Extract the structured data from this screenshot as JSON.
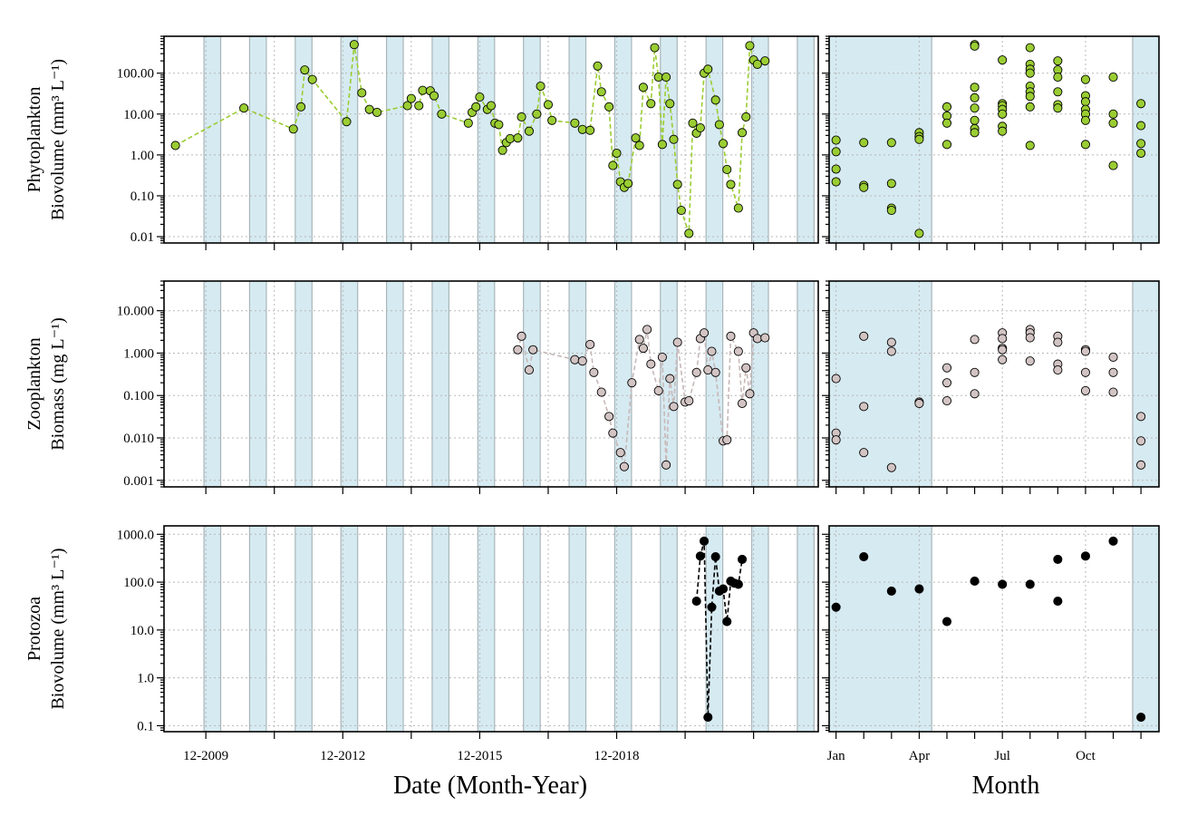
{
  "figure": {
    "xlabel_date": "Date (Month-Year)",
    "xlabel_month": "Month",
    "date_tick_labels": [
      "12-2009",
      "12-2012",
      "12-2015",
      "12-2018"
    ],
    "month_tick_labels": [
      "Jan",
      "Apr",
      "Jul",
      "Oct"
    ],
    "colors": {
      "phyto_point": "#9acd32",
      "phyto_line": "#9acd32",
      "zoo_point": "#d3c4c4",
      "zoo_line": "#c8b8b8",
      "proto_point": "#000000",
      "proto_line": "#000000",
      "winter_shade": "#d6eaf1"
    }
  },
  "chart_data": [
    {
      "type": "scatter",
      "panel": "time-series",
      "ylabel_line1": "Phytoplankton",
      "ylabel_line2": "Biovolume (mm³ L⁻¹)",
      "yscale": "log",
      "ylim": [
        0.007,
        800
      ],
      "ytick_labels": [
        "0.01",
        "0.10",
        "1.00",
        "10.00",
        "100.00"
      ],
      "ytick_values": [
        0.01,
        0.1,
        1,
        10,
        100
      ],
      "series": [
        {
          "values": [
            [
              "2009-04",
              1.7
            ],
            [
              "2010-10",
              14
            ],
            [
              "2011-11",
              4.3
            ],
            [
              "2012-01",
              15
            ],
            [
              "2012-02",
              120
            ],
            [
              "2012-04",
              70
            ],
            [
              "2013-01",
              6.5
            ],
            [
              "2013-03",
              500
            ],
            [
              "2013-05",
              33
            ],
            [
              "2013-07",
              13
            ],
            [
              "2013-09",
              11
            ],
            [
              "2014-05",
              16
            ],
            [
              "2014-06",
              24
            ],
            [
              "2014-08",
              16
            ],
            [
              "2014-09",
              38
            ],
            [
              "2014-11",
              37
            ],
            [
              "2014-12",
              28
            ],
            [
              "2015-02",
              10
            ],
            [
              "2015-09",
              6
            ],
            [
              "2015-10",
              11
            ],
            [
              "2015-11",
              15
            ],
            [
              "2015-12",
              26
            ],
            [
              "2016-02",
              13
            ],
            [
              "2016-03",
              16
            ],
            [
              "2016-04",
              6
            ],
            [
              "2016-05",
              5.5
            ],
            [
              "2016-06",
              1.3
            ],
            [
              "2016-07",
              2
            ],
            [
              "2016-08",
              2.5
            ],
            [
              "2016-10",
              2.6
            ],
            [
              "2016-11",
              8.5
            ],
            [
              "2017-01",
              3.8
            ],
            [
              "2017-03",
              10
            ],
            [
              "2017-04",
              48
            ],
            [
              "2017-06",
              17
            ],
            [
              "2017-07",
              7
            ],
            [
              "2018-01",
              6
            ],
            [
              "2018-03",
              4.2
            ],
            [
              "2018-05",
              4
            ],
            [
              "2018-07",
              150
            ],
            [
              "2018-08",
              35
            ],
            [
              "2018-10",
              15
            ],
            [
              "2018-11",
              0.55
            ],
            [
              "2018-12",
              1.1
            ],
            [
              "2019-01",
              0.22
            ],
            [
              "2019-02",
              0.16
            ],
            [
              "2019-03",
              0.2
            ],
            [
              "2019-05",
              2.6
            ],
            [
              "2019-06",
              1.7
            ],
            [
              "2019-07",
              45
            ],
            [
              "2019-09",
              18
            ],
            [
              "2019-10",
              420
            ],
            [
              "2019-11",
              80
            ],
            [
              "2019-12",
              1.8
            ],
            [
              "2020-01",
              80
            ],
            [
              "2020-02",
              18
            ],
            [
              "2020-03",
              2.4
            ],
            [
              "2020-04",
              0.19
            ],
            [
              "2020-05",
              0.044
            ],
            [
              "2020-07",
              0.012
            ],
            [
              "2020-08",
              6
            ],
            [
              "2020-09",
              3.4
            ],
            [
              "2020-10",
              4.6
            ],
            [
              "2020-11",
              100
            ],
            [
              "2020-12",
              125
            ],
            [
              "2021-02",
              22
            ],
            [
              "2021-03",
              5.5
            ],
            [
              "2021-04",
              1.9
            ],
            [
              "2021-05",
              0.44
            ],
            [
              "2021-06",
              0.19
            ],
            [
              "2021-08",
              0.05
            ],
            [
              "2021-09",
              3.5
            ],
            [
              "2021-10",
              8.5
            ],
            [
              "2021-11",
              470
            ],
            [
              "2021-12",
              210
            ],
            [
              "2022-01",
              165
            ],
            [
              "2022-03",
              200
            ]
          ]
        }
      ],
      "seasonal": {
        "values": [
          [
            1,
            2.3
          ],
          [
            1,
            1.2
          ],
          [
            1,
            0.45
          ],
          [
            1,
            0.22
          ],
          [
            2,
            2
          ],
          [
            2,
            0.18
          ],
          [
            2,
            0.16
          ],
          [
            3,
            2
          ],
          [
            3,
            0.2
          ],
          [
            3,
            0.05
          ],
          [
            3,
            0.044
          ],
          [
            4,
            3.5
          ],
          [
            4,
            2.8
          ],
          [
            4,
            2.4
          ],
          [
            4,
            0.012
          ],
          [
            5,
            15
          ],
          [
            5,
            9
          ],
          [
            5,
            6
          ],
          [
            5,
            1.8
          ],
          [
            6,
            500
          ],
          [
            6,
            460
          ],
          [
            6,
            45
          ],
          [
            6,
            25
          ],
          [
            6,
            14
          ],
          [
            6,
            7
          ],
          [
            6,
            4.4
          ],
          [
            6,
            3.5
          ],
          [
            7,
            210
          ],
          [
            7,
            18
          ],
          [
            7,
            16
          ],
          [
            7,
            13
          ],
          [
            7,
            10
          ],
          [
            7,
            5
          ],
          [
            7,
            3.8
          ],
          [
            8,
            420
          ],
          [
            8,
            165
          ],
          [
            8,
            125
          ],
          [
            8,
            100
          ],
          [
            8,
            48
          ],
          [
            8,
            35
          ],
          [
            8,
            27
          ],
          [
            8,
            15
          ],
          [
            8,
            1.7
          ],
          [
            9,
            200
          ],
          [
            9,
            120
          ],
          [
            9,
            80
          ],
          [
            9,
            35
          ],
          [
            9,
            17
          ],
          [
            9,
            14
          ],
          [
            10,
            70
          ],
          [
            10,
            28
          ],
          [
            10,
            20
          ],
          [
            10,
            13
          ],
          [
            10,
            10
          ],
          [
            10,
            7
          ],
          [
            10,
            1.8
          ],
          [
            11,
            80
          ],
          [
            11,
            10
          ],
          [
            11,
            6
          ],
          [
            11,
            0.55
          ],
          [
            12,
            18
          ],
          [
            12,
            5.2
          ],
          [
            12,
            1.9
          ],
          [
            12,
            1.1
          ]
        ]
      }
    },
    {
      "type": "scatter",
      "panel": "time-series",
      "ylabel_line1": "Zooplankton",
      "ylabel_line2": "Biomass (mg L⁻¹)",
      "yscale": "log",
      "ylim": [
        0.0007,
        50
      ],
      "ytick_labels": [
        "0.001",
        "0.010",
        "0.100",
        "1.000",
        "10.000"
      ],
      "ytick_values": [
        0.001,
        0.01,
        0.1,
        1,
        10
      ],
      "series": [
        {
          "values": [
            [
              "2016-10",
              1.2
            ],
            [
              "2016-11",
              2.5
            ],
            [
              "2017-01",
              0.4
            ],
            [
              "2017-02",
              1.2
            ],
            [
              "2018-01",
              0.7
            ],
            [
              "2018-03",
              0.65
            ],
            [
              "2018-05",
              1.6
            ],
            [
              "2018-06",
              0.35
            ],
            [
              "2018-08",
              0.12
            ],
            [
              "2018-10",
              0.032
            ],
            [
              "2018-11",
              0.013
            ],
            [
              "2019-01",
              0.0045
            ],
            [
              "2019-02",
              0.0021
            ],
            [
              "2019-04",
              0.2
            ],
            [
              "2019-06",
              2.1
            ],
            [
              "2019-07",
              1.3
            ],
            [
              "2019-08",
              3.6
            ],
            [
              "2019-09",
              0.55
            ],
            [
              "2019-11",
              0.13
            ],
            [
              "2019-12",
              0.8
            ],
            [
              "2020-01",
              0.0023
            ],
            [
              "2020-02",
              0.25
            ],
            [
              "2020-03",
              0.055
            ],
            [
              "2020-04",
              1.8
            ],
            [
              "2020-06",
              0.07
            ],
            [
              "2020-07",
              0.075
            ],
            [
              "2020-09",
              0.35
            ],
            [
              "2020-10",
              2.2
            ],
            [
              "2020-11",
              3
            ],
            [
              "2020-12",
              0.4
            ],
            [
              "2021-01",
              1.1
            ],
            [
              "2021-02",
              0.35
            ],
            [
              "2021-04",
              0.0085
            ],
            [
              "2021-05",
              0.009
            ],
            [
              "2021-06",
              2.5
            ],
            [
              "2021-08",
              1.1
            ],
            [
              "2021-09",
              0.065
            ],
            [
              "2021-10",
              0.45
            ],
            [
              "2021-11",
              0.11
            ],
            [
              "2021-12",
              3
            ],
            [
              "2022-01",
              2.2
            ],
            [
              "2022-03",
              2.3
            ]
          ]
        }
      ],
      "seasonal": {
        "values": [
          [
            1,
            0.25
          ],
          [
            1,
            0.013
          ],
          [
            1,
            0.009
          ],
          [
            2,
            2.5
          ],
          [
            2,
            0.055
          ],
          [
            2,
            0.0045
          ],
          [
            3,
            1.8
          ],
          [
            3,
            1.1
          ],
          [
            3,
            0.002
          ],
          [
            4,
            0.07
          ],
          [
            4,
            0.065
          ],
          [
            5,
            0.45
          ],
          [
            5,
            0.2
          ],
          [
            5,
            0.075
          ],
          [
            6,
            2.1
          ],
          [
            6,
            0.35
          ],
          [
            6,
            0.11
          ],
          [
            7,
            3
          ],
          [
            7,
            2.2
          ],
          [
            7,
            1.3
          ],
          [
            7,
            1.2
          ],
          [
            7,
            0.7
          ],
          [
            8,
            3.6
          ],
          [
            8,
            3
          ],
          [
            8,
            2.3
          ],
          [
            8,
            0.65
          ],
          [
            9,
            2.5
          ],
          [
            9,
            1.8
          ],
          [
            9,
            0.55
          ],
          [
            9,
            0.4
          ],
          [
            10,
            1.2
          ],
          [
            10,
            1.1
          ],
          [
            10,
            0.35
          ],
          [
            10,
            0.13
          ],
          [
            11,
            0.8
          ],
          [
            11,
            0.35
          ],
          [
            11,
            0.12
          ],
          [
            12,
            0.032
          ],
          [
            12,
            0.0085
          ],
          [
            12,
            0.0023
          ]
        ]
      }
    },
    {
      "type": "scatter",
      "panel": "time-series",
      "ylabel_line1": "Protozoa",
      "ylabel_line2": "Biovolume (mm³ L⁻¹)",
      "yscale": "log",
      "ylim": [
        0.075,
        1500
      ],
      "ytick_labels": [
        "0.1",
        "1.0",
        "10.0",
        "100.0",
        "1000.0"
      ],
      "ytick_values": [
        0.1,
        1,
        10,
        100,
        1000
      ],
      "series": [
        {
          "values": [
            [
              "2020-09",
              40
            ],
            [
              "2020-10",
              350
            ],
            [
              "2020-11",
              720
            ],
            [
              "2020-12",
              0.15
            ],
            [
              "2021-01",
              30
            ],
            [
              "2021-02",
              340
            ],
            [
              "2021-03",
              65
            ],
            [
              "2021-04",
              72
            ],
            [
              "2021-05",
              15
            ],
            [
              "2021-06",
              105
            ],
            [
              "2021-07",
              95
            ],
            [
              "2021-08",
              90
            ],
            [
              "2021-09",
              300
            ]
          ]
        }
      ],
      "seasonal": {
        "values": [
          [
            1,
            30
          ],
          [
            2,
            340
          ],
          [
            3,
            65
          ],
          [
            4,
            72
          ],
          [
            5,
            15
          ],
          [
            6,
            105
          ],
          [
            7,
            90
          ],
          [
            8,
            90
          ],
          [
            9,
            300
          ],
          [
            9,
            40
          ],
          [
            10,
            350
          ],
          [
            11,
            720
          ],
          [
            12,
            0.15
          ]
        ]
      }
    }
  ]
}
